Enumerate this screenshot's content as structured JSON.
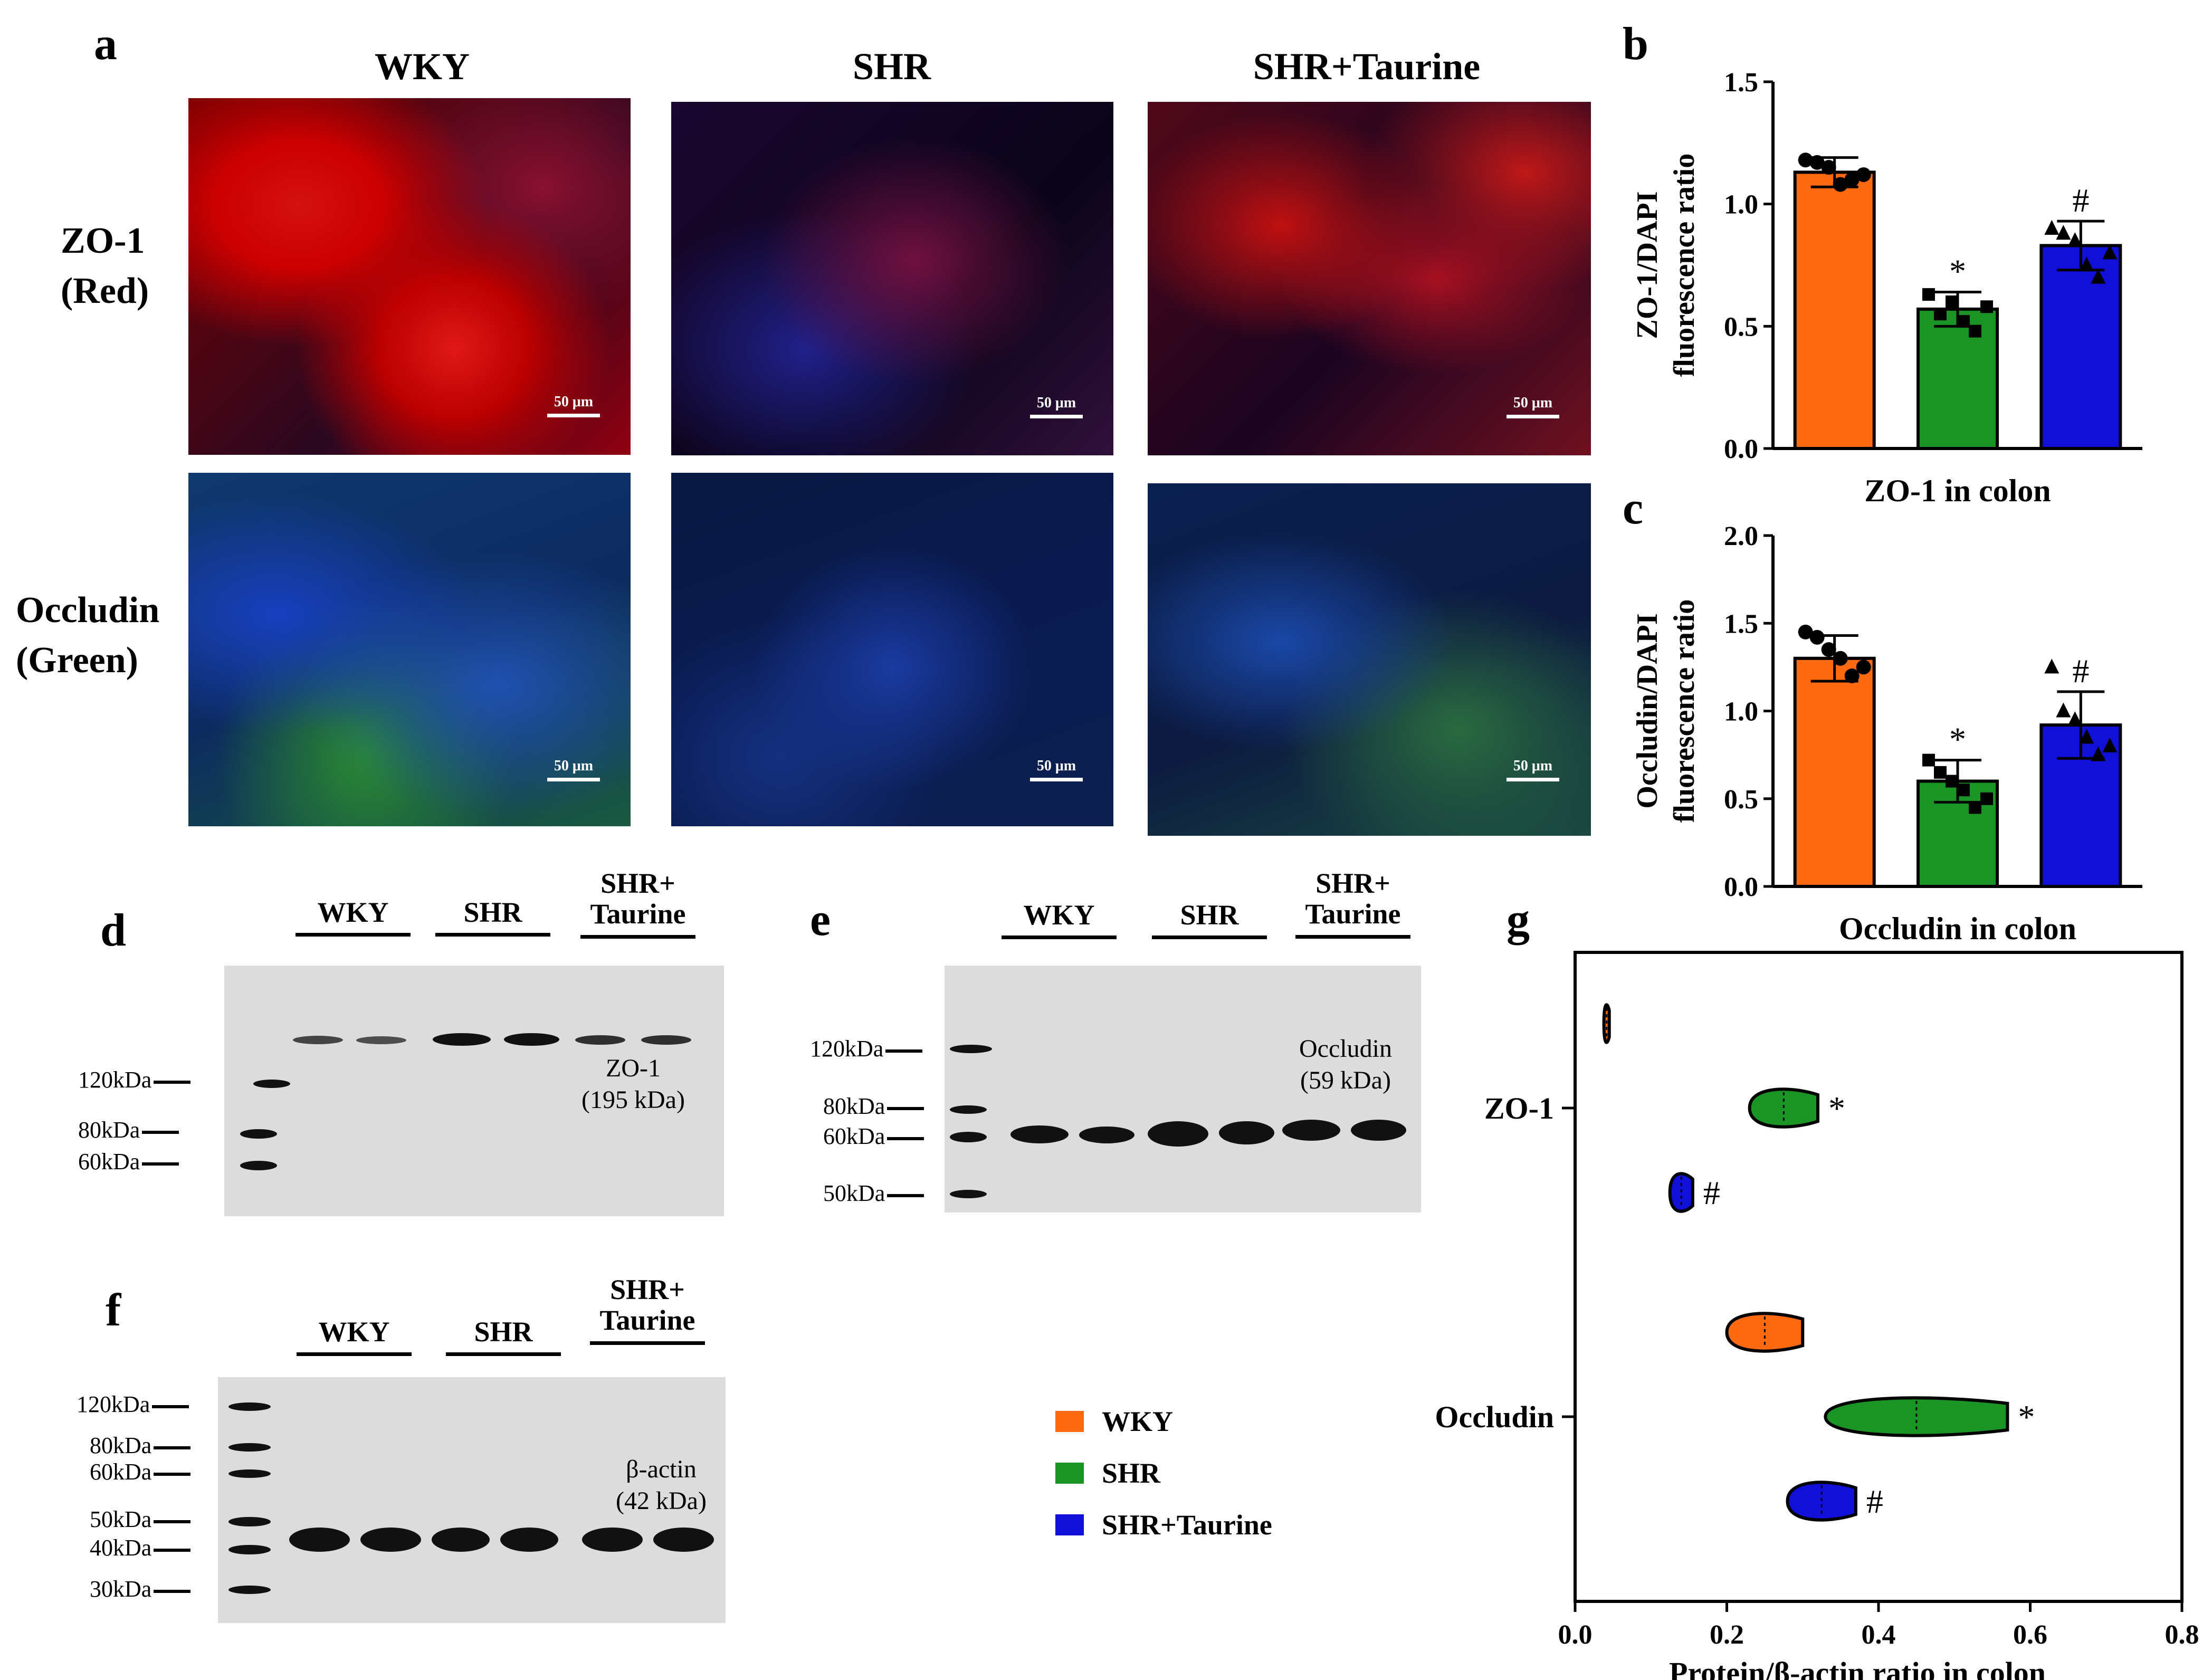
{
  "panels": {
    "a": "a",
    "b": "b",
    "c": "c",
    "d": "d",
    "e": "e",
    "f": "f",
    "g": "g"
  },
  "groups": [
    "WKY",
    "SHR",
    "SHR+Taurine"
  ],
  "groups_blot": [
    "WKY",
    "SHR",
    "SHR+\nTaurine"
  ],
  "rows": {
    "zo1": "ZO-1\n(Red)",
    "occludin": "Occludin\n(Green)"
  },
  "scale_bar": "50 μm",
  "colors": {
    "WKY": "#ff6a10",
    "SHR": "#1a9424",
    "SHR+Taurine": "#1010d8"
  },
  "blots": {
    "d": {
      "markers": [
        "120kDa",
        "80kDa",
        "60kDa"
      ],
      "band_label": "ZO-1\n(195 kDa)"
    },
    "e": {
      "markers": [
        "120kDa",
        "80kDa",
        "60kDa",
        "50kDa"
      ],
      "band_label": "Occludin\n(59 kDa)"
    },
    "f": {
      "markers": [
        "120kDa",
        "80kDa",
        "60kDa",
        "50kDa",
        "40kDa",
        "30kDa"
      ],
      "band_label": "β-actin\n(42 kDa)"
    }
  },
  "legend": [
    "WKY",
    "SHR",
    "SHR+Taurine"
  ],
  "chart_data": [
    {
      "panel": "b",
      "type": "bar",
      "categories": [
        "WKY",
        "SHR",
        "SHR+Taurine"
      ],
      "values": [
        1.13,
        0.57,
        0.83
      ],
      "errors": [
        0.06,
        0.07,
        0.1
      ],
      "points": [
        [
          1.18,
          1.17,
          1.15,
          1.08,
          1.1,
          1.12
        ],
        [
          0.63,
          0.55,
          0.6,
          0.52,
          0.48,
          0.58
        ],
        [
          0.9,
          0.88,
          0.85,
          0.75,
          0.7,
          0.8
        ]
      ],
      "markers": [
        "circle",
        "square",
        "triangle"
      ],
      "annotations": [
        "",
        "*",
        "#"
      ],
      "ylabel": "ZO-1/DAPI\nfluorescence ratio",
      "xlabel": "ZO-1 in colon",
      "ylim": [
        0.0,
        1.5
      ],
      "yticks": [
        "0.0",
        "0.5",
        "1.0",
        "1.5"
      ]
    },
    {
      "panel": "c",
      "type": "bar",
      "categories": [
        "WKY",
        "SHR",
        "SHR+Taurine"
      ],
      "values": [
        1.3,
        0.6,
        0.92
      ],
      "errors": [
        0.13,
        0.12,
        0.19
      ],
      "points": [
        [
          1.45,
          1.42,
          1.35,
          1.3,
          1.2,
          1.25
        ],
        [
          0.72,
          0.65,
          0.6,
          0.55,
          0.45,
          0.5
        ],
        [
          1.25,
          1.0,
          0.95,
          0.85,
          0.75,
          0.8
        ]
      ],
      "markers": [
        "circle",
        "square",
        "triangle"
      ],
      "annotations": [
        "",
        "*",
        "#"
      ],
      "ylabel": "Occludin/DAPI\nfluorescence ratio",
      "xlabel": "Occludin in colon",
      "ylim": [
        0.0,
        2.0
      ],
      "yticks": [
        "0.0",
        "0.5",
        "1.0",
        "1.5",
        "2.0"
      ]
    },
    {
      "panel": "g",
      "type": "violin",
      "categories": [
        "ZO-1",
        "Occludin"
      ],
      "series": [
        {
          "name": "WKY",
          "values": [
            [
              0.038,
              0.045
            ],
            [
              0.2,
              0.3
            ]
          ]
        },
        {
          "name": "SHR",
          "values": [
            [
              0.23,
              0.32
            ],
            [
              0.33,
              0.57
            ]
          ]
        },
        {
          "name": "SHR+Taurine",
          "values": [
            [
              0.125,
              0.155
            ],
            [
              0.28,
              0.37
            ]
          ]
        }
      ],
      "annotations": [
        [
          "",
          "*",
          "#"
        ],
        [
          "",
          "*",
          "#"
        ]
      ],
      "xlabel": "Protein/β-actin ratio in colon",
      "xlim": [
        0.0,
        0.8
      ],
      "xticks": [
        "0.0",
        "0.2",
        "0.4",
        "0.6",
        "0.8"
      ]
    }
  ]
}
